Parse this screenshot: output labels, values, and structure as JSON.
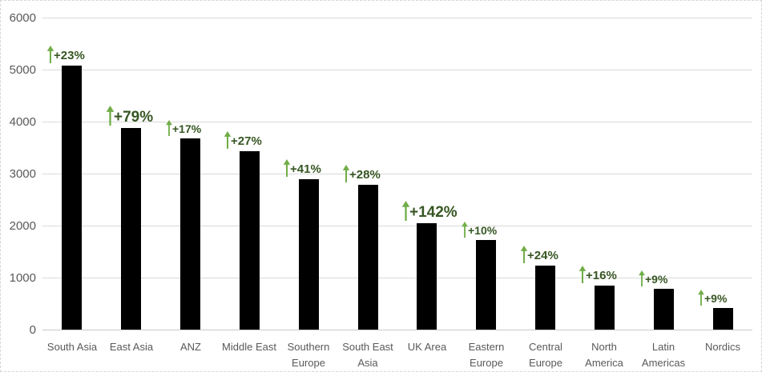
{
  "chart_data": {
    "type": "bar",
    "title": "",
    "xlabel": "",
    "ylabel": "",
    "categories": [
      "South Asia",
      "East Asia",
      "ANZ",
      "Middle East",
      "Southern Europe",
      "South East Asia",
      "UK Area",
      "Eastern Europe",
      "Central Europe",
      "North America",
      "Latin Americas",
      "Nordics"
    ],
    "values": [
      5080,
      3880,
      3680,
      3430,
      2890,
      2790,
      2040,
      1730,
      1230,
      850,
      780,
      410
    ],
    "annotations": [
      {
        "label": "+23%",
        "size": "md"
      },
      {
        "label": "+79%",
        "size": "lg"
      },
      {
        "label": "+17%",
        "size": "sm"
      },
      {
        "label": "+27%",
        "size": "md"
      },
      {
        "label": "+41%",
        "size": "md"
      },
      {
        "label": "+28%",
        "size": "md"
      },
      {
        "label": "+142%",
        "size": "lg"
      },
      {
        "label": "+10%",
        "size": "sm"
      },
      {
        "label": "+24%",
        "size": "md"
      },
      {
        "label": "+16%",
        "size": "md"
      },
      {
        "label": "+9%",
        "size": "sm"
      },
      {
        "label": "+9%",
        "size": "sm"
      }
    ],
    "yticks": [
      0,
      1000,
      2000,
      3000,
      4000,
      5000,
      6000
    ],
    "ylim": [
      0,
      6000
    ],
    "grid": true,
    "legend": false,
    "colors": {
      "bar": "#000000",
      "annotation_text": "#375623",
      "arrow": "#70ad47",
      "gridline": "#d9d9d9",
      "axis_label": "#595959"
    }
  }
}
